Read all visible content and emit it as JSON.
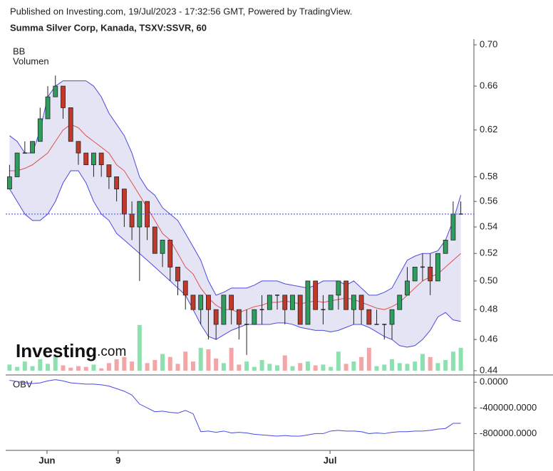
{
  "header": {
    "published": "Published on Investing.com, 19/Jul/2023 - 17:32:56 GMT, Powered by TradingView.",
    "symbol": "Summa Silver Corp, Kanada, TSXV:SSVR, 60"
  },
  "logo": {
    "brand": "Investing",
    "suffix": ".com"
  },
  "chart_data": [
    {
      "type": "candlestick",
      "labels": [
        "BB",
        "Volumen"
      ],
      "log_scale": true,
      "ylim": [
        0.44,
        0.7
      ],
      "yticks": [
        {
          "value": 0.7,
          "label": "0.70"
        },
        0.66,
        0.62,
        0.58,
        0.56,
        0.54,
        0.52,
        {
          "value": 0.5,
          "label": "0.50"
        },
        0.48,
        0.46,
        0.44
      ],
      "xlim": [
        0,
        60
      ],
      "xticks": [
        {
          "value": 5.4,
          "label": "Jun"
        },
        {
          "value": 14.7,
          "label": "9"
        },
        {
          "value": 42.4,
          "label": "Jul"
        }
      ],
      "up_color": "#2e9e5e",
      "down_color": "#c0392b",
      "band_color": "#4a4ae0",
      "band_fill": "#e4e4f4",
      "mid_color": "#e05050",
      "price_line": 0.55,
      "price_line_color": "#3a46e0",
      "open": [
        0.57,
        0.58,
        0.6,
        0.6,
        0.61,
        0.63,
        0.65,
        0.66,
        0.64,
        0.61,
        0.6,
        0.59,
        0.6,
        0.59,
        0.58,
        0.57,
        0.55,
        0.54,
        0.56,
        0.54,
        0.52,
        0.53,
        0.51,
        0.5,
        0.49,
        0.48,
        0.49,
        0.48,
        0.47,
        0.49,
        0.48,
        0.47,
        0.47,
        0.48,
        0.48,
        0.49,
        0.49,
        0.48,
        0.49,
        0.47,
        0.5,
        0.48,
        0.48,
        0.49,
        0.5,
        0.48,
        0.49,
        0.48,
        0.47,
        0.47,
        0.47,
        0.48,
        0.49,
        0.5,
        0.51,
        0.51,
        0.5,
        0.52,
        0.53,
        0.55
      ],
      "high": [
        0.59,
        0.6,
        0.61,
        0.61,
        0.64,
        0.66,
        0.67,
        0.66,
        0.64,
        0.61,
        0.6,
        0.6,
        0.6,
        0.59,
        0.58,
        0.57,
        0.56,
        0.56,
        0.56,
        0.54,
        0.53,
        0.53,
        0.51,
        0.5,
        0.49,
        0.49,
        0.49,
        0.48,
        0.49,
        0.49,
        0.48,
        0.48,
        0.48,
        0.49,
        0.49,
        0.49,
        0.49,
        0.49,
        0.49,
        0.5,
        0.5,
        0.49,
        0.49,
        0.5,
        0.5,
        0.49,
        0.49,
        0.48,
        0.48,
        0.47,
        0.48,
        0.49,
        0.51,
        0.51,
        0.52,
        0.52,
        0.52,
        0.53,
        0.56,
        0.56
      ],
      "low": [
        0.57,
        0.58,
        0.6,
        0.6,
        0.61,
        0.63,
        0.65,
        0.63,
        0.61,
        0.59,
        0.59,
        0.58,
        0.58,
        0.57,
        0.56,
        0.54,
        0.53,
        0.5,
        0.53,
        0.52,
        0.51,
        0.5,
        0.49,
        0.48,
        0.48,
        0.47,
        0.46,
        0.46,
        0.47,
        0.47,
        0.46,
        0.45,
        0.47,
        0.47,
        0.48,
        0.48,
        0.47,
        0.48,
        0.47,
        0.47,
        0.48,
        0.47,
        0.48,
        0.48,
        0.48,
        0.47,
        0.47,
        0.47,
        0.47,
        0.46,
        0.46,
        0.48,
        0.49,
        0.5,
        0.5,
        0.49,
        0.5,
        0.52,
        0.53,
        0.55
      ],
      "close": [
        0.58,
        0.6,
        0.6,
        0.61,
        0.63,
        0.65,
        0.66,
        0.64,
        0.61,
        0.6,
        0.59,
        0.6,
        0.59,
        0.58,
        0.57,
        0.55,
        0.54,
        0.56,
        0.54,
        0.52,
        0.53,
        0.51,
        0.5,
        0.49,
        0.48,
        0.49,
        0.48,
        0.47,
        0.49,
        0.48,
        0.47,
        0.47,
        0.48,
        0.48,
        0.49,
        0.49,
        0.48,
        0.49,
        0.47,
        0.5,
        0.48,
        0.48,
        0.49,
        0.5,
        0.48,
        0.49,
        0.48,
        0.47,
        0.47,
        0.47,
        0.48,
        0.49,
        0.5,
        0.51,
        0.51,
        0.5,
        0.52,
        0.53,
        0.55,
        0.55
      ],
      "bb_upper": [
        0.615,
        0.61,
        0.6,
        0.6,
        0.62,
        0.65,
        0.66,
        0.665,
        0.665,
        0.665,
        0.665,
        0.66,
        0.65,
        0.635,
        0.625,
        0.615,
        0.6,
        0.58,
        0.57,
        0.565,
        0.555,
        0.55,
        0.545,
        0.535,
        0.525,
        0.515,
        0.5,
        0.49,
        0.492,
        0.495,
        0.495,
        0.495,
        0.497,
        0.5,
        0.5,
        0.5,
        0.498,
        0.497,
        0.496,
        0.495,
        0.497,
        0.5,
        0.5,
        0.5,
        0.497,
        0.5,
        0.495,
        0.49,
        0.49,
        0.492,
        0.495,
        0.505,
        0.515,
        0.518,
        0.52,
        0.52,
        0.522,
        0.53,
        0.545,
        0.565
      ],
      "bb_middle": [
        0.585,
        0.585,
        0.587,
        0.59,
        0.595,
        0.6,
        0.61,
        0.62,
        0.625,
        0.622,
        0.615,
        0.61,
        0.605,
        0.6,
        0.59,
        0.585,
        0.575,
        0.565,
        0.555,
        0.545,
        0.535,
        0.53,
        0.52,
        0.51,
        0.505,
        0.495,
        0.488,
        0.483,
        0.48,
        0.48,
        0.478,
        0.48,
        0.482,
        0.483,
        0.485,
        0.485,
        0.486,
        0.485,
        0.484,
        0.485,
        0.486,
        0.485,
        0.486,
        0.487,
        0.488,
        0.487,
        0.485,
        0.483,
        0.481,
        0.48,
        0.482,
        0.485,
        0.49,
        0.495,
        0.5,
        0.503,
        0.505,
        0.51,
        0.515,
        0.52
      ],
      "bb_lower": [
        0.57,
        0.56,
        0.55,
        0.545,
        0.545,
        0.55,
        0.56,
        0.575,
        0.585,
        0.585,
        0.575,
        0.56,
        0.55,
        0.545,
        0.535,
        0.53,
        0.525,
        0.52,
        0.515,
        0.51,
        0.505,
        0.5,
        0.495,
        0.49,
        0.48,
        0.47,
        0.462,
        0.46,
        0.463,
        0.466,
        0.468,
        0.47,
        0.47,
        0.47,
        0.47,
        0.471,
        0.471,
        0.47,
        0.468,
        0.467,
        0.466,
        0.466,
        0.465,
        0.466,
        0.468,
        0.47,
        0.47,
        0.468,
        0.465,
        0.462,
        0.46,
        0.456,
        0.455,
        0.456,
        0.46,
        0.466,
        0.475,
        0.478,
        0.473,
        0.472
      ],
      "volume_ylim": [
        0,
        140000
      ],
      "volume_up_color": "#8fe0b0",
      "volume_down_color": "#f4a6a6",
      "volume": [
        8000,
        5000,
        12000,
        6000,
        15000,
        9000,
        20000,
        7000,
        4000,
        6000,
        5000,
        8000,
        3000,
        10000,
        15000,
        18000,
        12000,
        60000,
        10000,
        14000,
        22000,
        18000,
        9000,
        25000,
        12000,
        30000,
        28000,
        16000,
        10000,
        30000,
        8000,
        12000,
        5000,
        14000,
        9000,
        7000,
        20000,
        6000,
        10000,
        12000,
        7000,
        8000,
        5000,
        25000,
        9000,
        12000,
        18000,
        30000,
        6000,
        8000,
        15000,
        10000,
        9000,
        12000,
        22000,
        18000,
        10000,
        14000,
        25000,
        30000
      ]
    },
    {
      "type": "line",
      "label": "OBV",
      "color": "#4a4ae0",
      "ylim": [
        -1050000,
        80000
      ],
      "yticks": [
        {
          "value": 0,
          "label": "0.0000"
        },
        {
          "value": -400000,
          "label": "-400000.0000"
        },
        {
          "value": -800000,
          "label": "-800000.0000"
        }
      ],
      "xlim": [
        0,
        60
      ],
      "values": [
        30000,
        10000,
        -10000,
        -20000,
        -10000,
        20000,
        40000,
        20000,
        -10000,
        -20000,
        -30000,
        -30000,
        -40000,
        -60000,
        -100000,
        -140000,
        -200000,
        -340000,
        -400000,
        -460000,
        -450000,
        -470000,
        -480000,
        -440000,
        -490000,
        -770000,
        -760000,
        -780000,
        -760000,
        -790000,
        -780000,
        -790000,
        -810000,
        -820000,
        -830000,
        -840000,
        -830000,
        -840000,
        -840000,
        -820000,
        -800000,
        -800000,
        -760000,
        -750000,
        -760000,
        -760000,
        -770000,
        -800000,
        -790000,
        -800000,
        -780000,
        -770000,
        -770000,
        -760000,
        -760000,
        -750000,
        -730000,
        -720000,
        -640000,
        -640000
      ]
    }
  ]
}
